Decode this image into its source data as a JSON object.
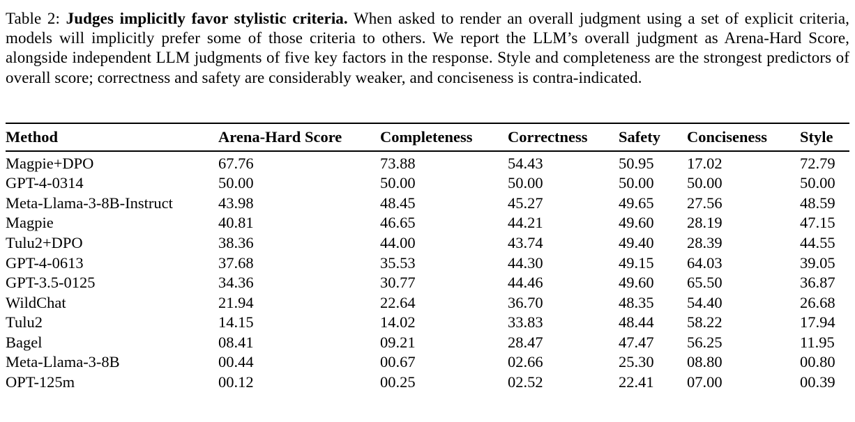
{
  "caption": {
    "label": "Table 2: ",
    "bold_lead": "Judges implicitly favor stylistic criteria.",
    "body": " When asked to render an overall judgment using a set of explicit criteria, models will implicitly prefer some of those criteria to others. We report the LLM’s overall judgment as Arena-Hard Score, alongside independent LLM judgments of five key factors in the response. Style and completeness are the strongest predictors of overall score; correctness and safety are considerably weaker, and conciseness is contra-indicated."
  },
  "table": {
    "columns": [
      "Method",
      "Arena-Hard Score",
      "Completeness",
      "Correctness",
      "Safety",
      "Conciseness",
      "Style"
    ],
    "rows": [
      [
        "Magpie+DPO",
        "67.76",
        "73.88",
        "54.43",
        "50.95",
        "17.02",
        "72.79"
      ],
      [
        "GPT-4-0314",
        "50.00",
        "50.00",
        "50.00",
        "50.00",
        "50.00",
        "50.00"
      ],
      [
        "Meta-Llama-3-8B-Instruct",
        "43.98",
        "48.45",
        "45.27",
        "49.65",
        "27.56",
        "48.59"
      ],
      [
        "Magpie",
        "40.81",
        "46.65",
        "44.21",
        "49.60",
        "28.19",
        "47.15"
      ],
      [
        "Tulu2+DPO",
        "38.36",
        "44.00",
        "43.74",
        "49.40",
        "28.39",
        "44.55"
      ],
      [
        "GPT-4-0613",
        "37.68",
        "35.53",
        "44.30",
        "49.15",
        "64.03",
        "39.05"
      ],
      [
        "GPT-3.5-0125",
        "34.36",
        "30.77",
        "44.46",
        "49.60",
        "65.50",
        "36.87"
      ],
      [
        "WildChat",
        "21.94",
        "22.64",
        "36.70",
        "48.35",
        "54.40",
        "26.68"
      ],
      [
        "Tulu2",
        "14.15",
        "14.02",
        "33.83",
        "48.44",
        "58.22",
        "17.94"
      ],
      [
        "Bagel",
        "08.41",
        "09.21",
        "28.47",
        "47.47",
        "56.25",
        "11.95"
      ],
      [
        "Meta-Llama-3-8B",
        "00.44",
        "00.67",
        "02.66",
        "25.30",
        "08.80",
        "00.80"
      ],
      [
        "OPT-125m",
        "00.12",
        "00.25",
        "02.52",
        "22.41",
        "07.00",
        "00.39"
      ]
    ]
  }
}
